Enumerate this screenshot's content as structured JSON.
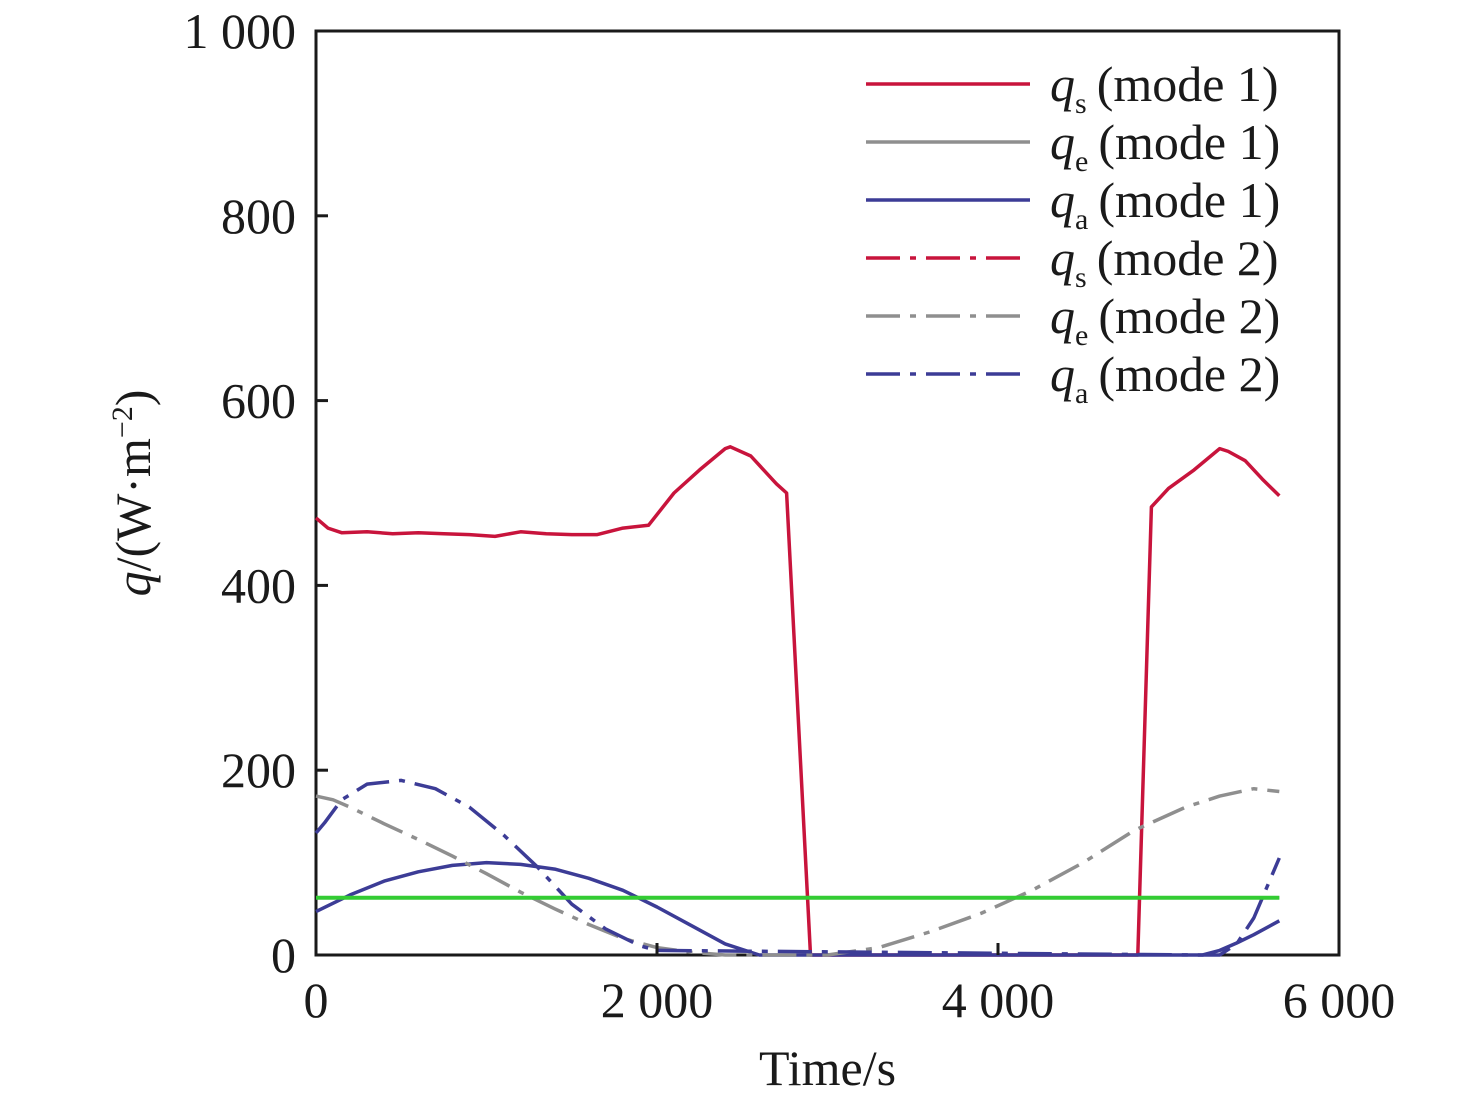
{
  "chart_data": {
    "type": "line",
    "xlabel": "Time/s",
    "ylabel": {
      "symbol": "q",
      "unit": "/(W·m",
      "exponent": "−2",
      "close": ")"
    },
    "xlim": [
      0,
      6000
    ],
    "ylim": [
      0,
      1000
    ],
    "xticks": [
      0,
      2000,
      4000,
      6000
    ],
    "xtick_labels": [
      "0",
      "2 000",
      "4 000",
      "6 000"
    ],
    "yticks": [
      0,
      200,
      400,
      600,
      800,
      1000
    ],
    "ytick_labels": [
      "0",
      "200",
      "400",
      "600",
      "800",
      "1 000"
    ],
    "grid": false,
    "legend_position": "top-right",
    "series": [
      {
        "symbol": "q",
        "sub": "s",
        "label": "(mode 1)",
        "color": "#c8143c",
        "dash": "solid",
        "x": [
          0,
          70,
          150,
          300,
          450,
          600,
          750,
          900,
          1050,
          1200,
          1350,
          1500,
          1650,
          1800,
          1950,
          2100,
          2250,
          2400,
          2430,
          2550,
          2700,
          2760,
          2900,
          4800,
          4820,
          4900,
          5000,
          5150,
          5300,
          5350,
          5450,
          5550,
          5650
        ],
        "y": [
          473,
          462,
          457,
          458,
          456,
          457,
          456,
          455,
          453,
          458,
          456,
          455,
          455,
          462,
          465,
          500,
          525,
          548,
          550,
          540,
          510,
          500,
          0,
          0,
          0,
          485,
          505,
          525,
          548,
          545,
          535,
          515,
          497
        ]
      },
      {
        "symbol": "q",
        "sub": "e",
        "label": "(mode 1)",
        "color": "#8f8f8f",
        "dash": "solid",
        "x": [
          0,
          5650
        ],
        "y": [
          62,
          62
        ]
      },
      {
        "symbol": "q",
        "sub": "a",
        "label": "(mode 1)",
        "color": "#3c3c96",
        "dash": "solid",
        "x": [
          0,
          200,
          400,
          600,
          800,
          1000,
          1200,
          1400,
          1600,
          1800,
          2000,
          2200,
          2400,
          2600,
          5200,
          5300,
          5400,
          5500,
          5650
        ],
        "y": [
          47,
          65,
          80,
          90,
          97,
          100,
          98,
          93,
          83,
          70,
          52,
          32,
          12,
          0,
          0,
          5,
          13,
          22,
          37
        ]
      },
      {
        "symbol": "q",
        "sub": "s",
        "label": "(mode 2)",
        "color": "#c8143c",
        "dash": "dashdot",
        "x": [],
        "y": []
      },
      {
        "symbol": "q",
        "sub": "e",
        "label": "(mode 2)",
        "color": "#8f8f8f",
        "dash": "dashdot",
        "x": [
          0,
          100,
          200,
          400,
          600,
          800,
          1000,
          1200,
          1400,
          1600,
          1800,
          2000,
          2200,
          2400,
          2600,
          3000,
          3300,
          3600,
          3900,
          4200,
          4500,
          4800,
          5100,
          5300,
          5500,
          5650
        ],
        "y": [
          172,
          168,
          160,
          142,
          125,
          107,
          88,
          68,
          50,
          33,
          18,
          8,
          3,
          0,
          0,
          0,
          8,
          25,
          45,
          70,
          100,
          135,
          160,
          172,
          180,
          177
        ]
      },
      {
        "symbol": "q",
        "sub": "a",
        "label": "(mode 2)",
        "color": "#3c3c96",
        "dash": "dashdot",
        "x": [
          0,
          50,
          150,
          300,
          500,
          700,
          900,
          1100,
          1300,
          1500,
          1700,
          1900,
          2000,
          5200,
          5300,
          5400,
          5500,
          5650
        ],
        "y": [
          132,
          143,
          168,
          185,
          189,
          180,
          160,
          130,
          95,
          55,
          28,
          10,
          5,
          0,
          0,
          12,
          40,
          105
        ]
      }
    ],
    "reference_line": {
      "y": 62,
      "color": "#33cc33"
    }
  }
}
